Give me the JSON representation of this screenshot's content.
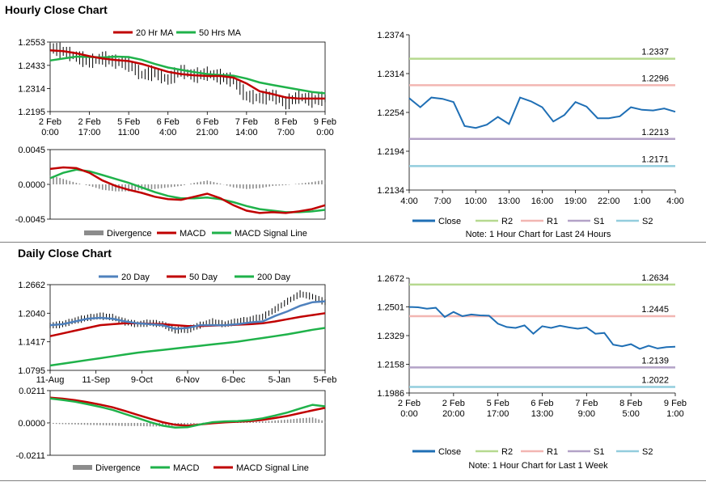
{
  "sections": {
    "hourly_title": "Hourly Close Chart",
    "daily_title": "Daily Close Chart"
  },
  "colors": {
    "ma_short": "#c00000",
    "ma_long": "#1fb24a",
    "ma_blue": "#4f81bd",
    "close_line": "#1f6fb5",
    "r2": "#b6d98f",
    "r1": "#f2b6b2",
    "s1": "#b3a2c7",
    "s2": "#93cddd",
    "divergence": "#8c8c8c",
    "price_bars": "#000000"
  },
  "chart_data": [
    {
      "id": "hourly-price",
      "type": "line",
      "title": "",
      "ylim": [
        1.2195,
        1.2553
      ],
      "y_ticks": [
        "1.2553",
        "1.2433",
        "1.2314",
        "1.2195"
      ],
      "x_ticks": [
        {
          "day": "2 Feb",
          "time": "0:00"
        },
        {
          "day": "2 Feb",
          "time": "17:00"
        },
        {
          "day": "5 Feb",
          "time": "11:00"
        },
        {
          "day": "6 Feb",
          "time": "4:00"
        },
        {
          "day": "6 Feb",
          "time": "21:00"
        },
        {
          "day": "7 Feb",
          "time": "14:00"
        },
        {
          "day": "8 Feb",
          "time": "7:00"
        },
        {
          "day": "9 Feb",
          "time": "0:00"
        }
      ],
      "legend": [
        "20 Hr MA",
        "50 Hrs MA"
      ],
      "series": [
        {
          "name": "20 Hr MA",
          "values": [
            1.251,
            1.2506,
            1.2495,
            1.248,
            1.2468,
            1.246,
            1.2455,
            1.244,
            1.242,
            1.24,
            1.2388,
            1.2382,
            1.2378,
            1.2378,
            1.237,
            1.234,
            1.23,
            1.2285,
            1.2268,
            1.2262,
            1.2262,
            1.2262
          ]
        },
        {
          "name": "50 Hrs MA",
          "values": [
            1.2458,
            1.2468,
            1.2478,
            1.2476,
            1.2474,
            1.2478,
            1.2476,
            1.2462,
            1.244,
            1.2422,
            1.241,
            1.2398,
            1.2388,
            1.2383,
            1.238,
            1.2365,
            1.2345,
            1.2332,
            1.232,
            1.2308,
            1.2296,
            1.2289
          ]
        },
        {
          "name": "Price",
          "values": [
            1.2525,
            1.2505,
            1.2478,
            1.2452,
            1.247,
            1.2452,
            1.244,
            1.2385,
            1.2395,
            1.236,
            1.2405,
            1.238,
            1.239,
            1.2375,
            1.2355,
            1.2275,
            1.2265,
            1.2278,
            1.224,
            1.2272,
            1.2255,
            1.2263
          ]
        }
      ]
    },
    {
      "id": "hourly-macd",
      "type": "line",
      "ylim": [
        -0.0045,
        0.0045
      ],
      "y_ticks": [
        "0.0045",
        "0.0000",
        "-0.0045"
      ],
      "legend": [
        "Divergence",
        "MACD",
        "MACD Signal Line"
      ],
      "series": [
        {
          "name": "MACD",
          "values": [
            0.002,
            0.0022,
            0.0021,
            0.0015,
            0.0005,
            -0.0002,
            -0.0007,
            -0.0011,
            -0.0016,
            -0.0019,
            -0.002,
            -0.0016,
            -0.0012,
            -0.0018,
            -0.0027,
            -0.0034,
            -0.0037,
            -0.0036,
            -0.0037,
            -0.0035,
            -0.0032,
            -0.0027
          ]
        },
        {
          "name": "MACD Signal Line",
          "values": [
            0.0008,
            0.0015,
            0.0019,
            0.0017,
            0.0012,
            0.0007,
            0.0002,
            -0.0004,
            -0.001,
            -0.0015,
            -0.0018,
            -0.0018,
            -0.0017,
            -0.0019,
            -0.0023,
            -0.0028,
            -0.0032,
            -0.0034,
            -0.0036,
            -0.0036,
            -0.0035,
            -0.0033
          ]
        },
        {
          "name": "Divergence",
          "values": [
            0.0012,
            0.0007,
            0.0002,
            -0.0002,
            -0.0007,
            -0.0009,
            -0.0009,
            -0.0007,
            -0.0006,
            -0.0004,
            -0.0002,
            0.0002,
            0.0005,
            0.0001,
            -0.0004,
            -0.0006,
            -0.0005,
            -0.0002,
            -0.0001,
            0.0001,
            0.0003,
            0.0006
          ]
        }
      ]
    },
    {
      "id": "hourly-levels",
      "type": "line",
      "ylim": [
        1.2134,
        1.2374
      ],
      "y_ticks": [
        "1.2374",
        "1.2314",
        "1.2254",
        "1.2194",
        "1.2134"
      ],
      "x_ticks": [
        "4:00",
        "7:00",
        "10:00",
        "13:00",
        "16:00",
        "19:00",
        "22:00",
        "1:00",
        "4:00"
      ],
      "legend": [
        "Close",
        "R2",
        "R1",
        "S1",
        "S2"
      ],
      "note": "Note: 1 Hour Chart for Last 24 Hours",
      "levels": [
        {
          "name": "R2",
          "value": 1.2337,
          "label": "1.2337"
        },
        {
          "name": "R1",
          "value": 1.2296,
          "label": "1.2296"
        },
        {
          "name": "S1",
          "value": 1.2213,
          "label": "1.2213"
        },
        {
          "name": "S2",
          "value": 1.2171,
          "label": "1.2171"
        }
      ],
      "series": [
        {
          "name": "Close",
          "values": [
            1.2276,
            1.2262,
            1.2277,
            1.2275,
            1.227,
            1.2233,
            1.223,
            1.2235,
            1.2247,
            1.2236,
            1.2277,
            1.2271,
            1.2262,
            1.224,
            1.225,
            1.227,
            1.2263,
            1.2245,
            1.2245,
            1.2248,
            1.2262,
            1.2258,
            1.2257,
            1.226,
            1.2255
          ]
        }
      ]
    },
    {
      "id": "daily-price",
      "type": "line",
      "ylim": [
        1.0795,
        1.2662
      ],
      "y_ticks": [
        "1.2662",
        "1.2040",
        "1.1417",
        "1.0795"
      ],
      "x_ticks": [
        "11-Aug",
        "11-Sep",
        "9-Oct",
        "6-Nov",
        "6-Dec",
        "5-Jan",
        "5-Feb"
      ],
      "legend": [
        "20 Day",
        "50 Day",
        "200 Day"
      ],
      "series": [
        {
          "name": "20 Day",
          "values": [
            1.178,
            1.18,
            1.186,
            1.192,
            1.194,
            1.192,
            1.186,
            1.182,
            1.18,
            1.178,
            1.17,
            1.172,
            1.178,
            1.178,
            1.178,
            1.18,
            1.184,
            1.186,
            1.198,
            1.208,
            1.22,
            1.228,
            1.23
          ]
        },
        {
          "name": "50 Day",
          "values": [
            1.154,
            1.16,
            1.166,
            1.172,
            1.178,
            1.18,
            1.182,
            1.182,
            1.181,
            1.18,
            1.178,
            1.176,
            1.176,
            1.177,
            1.178,
            1.179,
            1.18,
            1.182,
            1.186,
            1.191,
            1.196,
            1.2,
            1.204
          ]
        },
        {
          "name": "200 Day",
          "values": [
            1.09,
            1.094,
            1.098,
            1.102,
            1.106,
            1.11,
            1.114,
            1.118,
            1.121,
            1.124,
            1.127,
            1.13,
            1.133,
            1.136,
            1.139,
            1.142,
            1.146,
            1.15,
            1.154,
            1.158,
            1.163,
            1.168,
            1.172
          ]
        },
        {
          "name": "Price",
          "values": [
            1.177,
            1.18,
            1.188,
            1.194,
            1.198,
            1.195,
            1.185,
            1.18,
            1.183,
            1.18,
            1.167,
            1.168,
            1.178,
            1.185,
            1.18,
            1.186,
            1.19,
            1.196,
            1.212,
            1.23,
            1.246,
            1.24,
            1.228
          ]
        }
      ]
    },
    {
      "id": "daily-macd",
      "type": "line",
      "ylim": [
        -0.0211,
        0.0211
      ],
      "y_ticks": [
        "0.0211",
        "0.0000",
        "-0.0211"
      ],
      "legend": [
        "Divergence",
        "MACD",
        "MACD Signal Line"
      ],
      "series": [
        {
          "name": "MACD",
          "values": [
            0.016,
            0.015,
            0.0138,
            0.0122,
            0.0105,
            0.0085,
            0.0058,
            0.0032,
            0.0005,
            -0.0018,
            -0.003,
            -0.0028,
            -0.001,
            0.0005,
            0.001,
            0.0012,
            0.0018,
            0.003,
            0.0048,
            0.0068,
            0.0094,
            0.0118,
            0.0108
          ]
        },
        {
          "name": "MACD Signal Line",
          "values": [
            0.0165,
            0.0158,
            0.0148,
            0.0135,
            0.012,
            0.0102,
            0.0078,
            0.0052,
            0.0028,
            0.0005,
            -0.0012,
            -0.0018,
            -0.001,
            -0.0002,
            0.0004,
            0.0008,
            0.0012,
            0.002,
            0.0032,
            0.0046,
            0.0064,
            0.0082,
            0.0098
          ]
        },
        {
          "name": "Divergence",
          "values": [
            -0.0005,
            -0.0008,
            -0.001,
            -0.0013,
            -0.0015,
            -0.0017,
            -0.002,
            -0.002,
            -0.0023,
            -0.0023,
            -0.0018,
            -0.001,
            0.0,
            0.0007,
            0.0006,
            0.0004,
            0.0006,
            0.001,
            0.0016,
            0.0022,
            0.003,
            0.0036,
            0.001
          ]
        }
      ]
    },
    {
      "id": "daily-levels",
      "type": "line",
      "ylim": [
        1.1986,
        1.2672
      ],
      "y_ticks": [
        "1.2672",
        "1.2501",
        "1.2329",
        "1.2158",
        "1.1986"
      ],
      "x_ticks": [
        {
          "day": "2 Feb",
          "time": "0:00"
        },
        {
          "day": "2 Feb",
          "time": "20:00"
        },
        {
          "day": "5 Feb",
          "time": "17:00"
        },
        {
          "day": "6 Feb",
          "time": "13:00"
        },
        {
          "day": "7 Feb",
          "time": "9:00"
        },
        {
          "day": "8 Feb",
          "time": "5:00"
        },
        {
          "day": "9 Feb",
          "time": "1:00"
        }
      ],
      "legend": [
        "Close",
        "R2",
        "R1",
        "S1",
        "S2"
      ],
      "note": "Note: 1 Hour Chart for Last 1 Week",
      "levels": [
        {
          "name": "R2",
          "value": 1.2634,
          "label": "1.2634"
        },
        {
          "name": "R1",
          "value": 1.2445,
          "label": "1.2445"
        },
        {
          "name": "S1",
          "value": 1.2139,
          "label": "1.2139"
        },
        {
          "name": "S2",
          "value": 1.2022,
          "label": "1.2022"
        }
      ],
      "series": [
        {
          "name": "Close",
          "values": [
            1.25,
            1.2498,
            1.249,
            1.2495,
            1.244,
            1.247,
            1.2445,
            1.2455,
            1.245,
            1.2448,
            1.24,
            1.238,
            1.2375,
            1.239,
            1.234,
            1.2385,
            1.2375,
            1.2388,
            1.2378,
            1.237,
            1.2378,
            1.234,
            1.2345,
            1.2275,
            1.2265,
            1.2278,
            1.225,
            1.2268,
            1.2252,
            1.226,
            1.2263
          ]
        }
      ]
    }
  ]
}
